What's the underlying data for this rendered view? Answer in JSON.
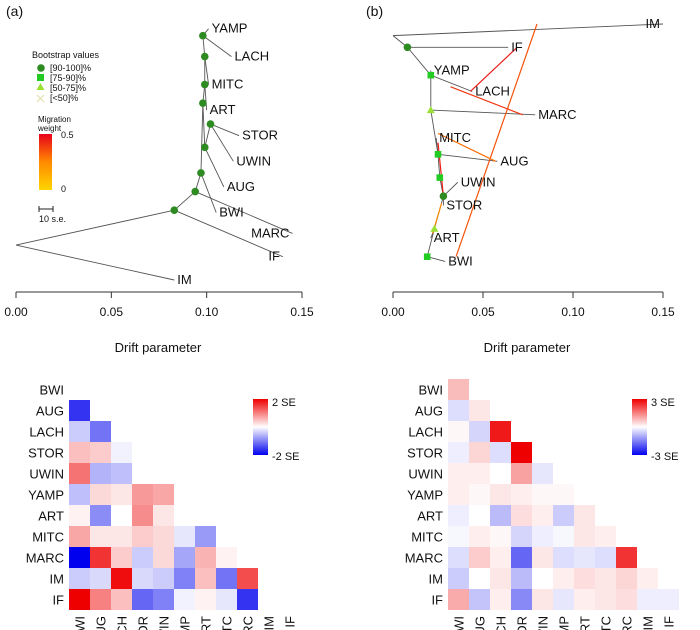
{
  "chart_data": [
    {
      "type": "tree",
      "panel_label": "(a)",
      "xlabel": "Drift parameter",
      "xlim": [
        0,
        0.15
      ],
      "xticks": [
        "0.00",
        "0.05",
        "0.10",
        "0.15"
      ],
      "tips": [
        {
          "name": "YAMP",
          "drift": 0.101,
          "rank": 10.8
        },
        {
          "name": "LACH",
          "drift": 0.113,
          "rank": 9.6
        },
        {
          "name": "MITC",
          "drift": 0.101,
          "rank": 8.4
        },
        {
          "name": "ART",
          "drift": 0.1,
          "rank": 7.3
        },
        {
          "name": "STOR",
          "drift": 0.117,
          "rank": 6.2
        },
        {
          "name": "UWIN",
          "drift": 0.114,
          "rank": 5.1
        },
        {
          "name": "AUG",
          "drift": 0.109,
          "rank": 4.0
        },
        {
          "name": "BWI",
          "drift": 0.105,
          "rank": 2.9
        },
        {
          "name": "MARC",
          "drift": 0.145,
          "rank": 2.0
        },
        {
          "name": "IF",
          "drift": 0.14,
          "rank": 1.0
        },
        {
          "name": "IM",
          "drift": 0.083,
          "rank": 0.0
        }
      ],
      "nodes": [
        {
          "id": "n1",
          "drift": 0.083,
          "rank": 3.0,
          "support": "[90-100]%"
        },
        {
          "id": "n2",
          "drift": 0.094,
          "rank": 3.8,
          "support": "[90-100]%"
        },
        {
          "id": "n3",
          "drift": 0.097,
          "rank": 4.6,
          "support": "[90-100]%"
        },
        {
          "id": "n4",
          "drift": 0.098,
          "rank": 7.6,
          "support": "[90-100]%"
        },
        {
          "id": "n5",
          "drift": 0.099,
          "rank": 8.4,
          "support": "[90-100]%"
        },
        {
          "id": "n6",
          "drift": 0.098,
          "rank": 10.5,
          "support": "[90-100]%"
        },
        {
          "id": "n7",
          "drift": 0.099,
          "rank": 9.6,
          "support": "[90-100]%"
        },
        {
          "id": "n8",
          "drift": 0.099,
          "rank": 5.7,
          "support": "[90-100]%"
        },
        {
          "id": "n9",
          "drift": 0.102,
          "rank": 6.7,
          "support": "[90-100]%"
        }
      ],
      "edges": [
        [
          "root",
          "IM"
        ],
        [
          "root",
          "n1"
        ],
        [
          "n1",
          "IF"
        ],
        [
          "n1",
          "n2"
        ],
        [
          "n2",
          "MARC"
        ],
        [
          "n2",
          "n3"
        ],
        [
          "n3",
          "BWI"
        ],
        [
          "n3",
          "n4"
        ],
        [
          "n4",
          "n8"
        ],
        [
          "n8",
          "AUG"
        ],
        [
          "n8",
          "n9"
        ],
        [
          "n9",
          "STOR"
        ],
        [
          "n9",
          "UWIN"
        ],
        [
          "n4",
          "n5"
        ],
        [
          "n5",
          "ART"
        ],
        [
          "n5",
          "n7"
        ],
        [
          "n7",
          "MITC"
        ],
        [
          "n7",
          "n6"
        ],
        [
          "n6",
          "YAMP"
        ],
        [
          "n6",
          "LACH"
        ]
      ],
      "root_drift": 0.0,
      "legend": {
        "bootstrap_title": "Bootstrap values",
        "bootstrap_entries": [
          {
            "label": "[90-100]%",
            "shape": "circle",
            "color": "#2e8b22"
          },
          {
            "label": "[75-90]%",
            "shape": "square",
            "color": "#22cc22"
          },
          {
            "label": "[50-75]%",
            "shape": "triangle",
            "color": "#99e033"
          },
          {
            "label": "[<50]%",
            "shape": "cross",
            "color": "#e6e6b3"
          }
        ],
        "migration_title_line1": "Migration",
        "migration_title_line2": "weight",
        "migration_max": "0.5",
        "migration_min": "0",
        "scale_label": "10 s.e."
      }
    },
    {
      "type": "tree",
      "panel_label": "(b)",
      "xlabel": "Drift parameter",
      "xlim": [
        0,
        0.15
      ],
      "xticks": [
        "0.00",
        "0.05",
        "0.10",
        "0.15"
      ],
      "tips": [
        {
          "name": "IM",
          "drift": 0.15,
          "rank": 11.0
        },
        {
          "name": "IF",
          "drift": 0.064,
          "rank": 10.0
        },
        {
          "name": "YAMP",
          "drift": 0.021,
          "rank": 9.0
        },
        {
          "name": "LACH",
          "drift": 0.044,
          "rank": 8.1
        },
        {
          "name": "MARC",
          "drift": 0.079,
          "rank": 7.1
        },
        {
          "name": "MITC",
          "drift": 0.024,
          "rank": 6.1
        },
        {
          "name": "AUG",
          "drift": 0.058,
          "rank": 5.1
        },
        {
          "name": "UWIN",
          "drift": 0.036,
          "rank": 4.2
        },
        {
          "name": "STOR",
          "drift": 0.028,
          "rank": 3.2
        },
        {
          "name": "ART",
          "drift": 0.021,
          "rank": 1.8
        },
        {
          "name": "BWI",
          "drift": 0.029,
          "rank": 0.8
        }
      ],
      "nodes": [
        {
          "id": "m1",
          "drift": 0.008,
          "rank": 10.0,
          "support": "[90-100]%"
        },
        {
          "id": "m2",
          "drift": 0.021,
          "rank": 8.8,
          "support": "[75-90]%"
        },
        {
          "id": "m3",
          "drift": 0.021,
          "rank": 7.3,
          "support": "[50-75]%"
        },
        {
          "id": "m4",
          "drift": 0.025,
          "rank": 5.4,
          "support": "[75-90]%"
        },
        {
          "id": "m5",
          "drift": 0.026,
          "rank": 4.4,
          "support": "[75-90]%"
        },
        {
          "id": "m6",
          "drift": 0.028,
          "rank": 3.6,
          "support": "[90-100]%"
        },
        {
          "id": "m7",
          "drift": 0.023,
          "rank": 2.2,
          "support": "[50-75]%"
        },
        {
          "id": "m8",
          "drift": 0.019,
          "rank": 1.0,
          "support": "[75-90]%"
        }
      ],
      "edges": [
        [
          "root",
          "IM"
        ],
        [
          "root",
          "m1"
        ],
        [
          "m1",
          "IF"
        ],
        [
          "m1",
          "m2"
        ],
        [
          "m2",
          "YAMP"
        ],
        [
          "m2",
          "LACH"
        ],
        [
          "m2",
          "m3"
        ],
        [
          "m3",
          "MARC"
        ],
        [
          "m3",
          "m4"
        ],
        [
          "m4",
          "MITC"
        ],
        [
          "m4",
          "AUG"
        ],
        [
          "m4",
          "m5"
        ],
        [
          "m5",
          "m6"
        ],
        [
          "m6",
          "UWIN"
        ],
        [
          "m6",
          "STOR"
        ],
        [
          "m6",
          "m7"
        ],
        [
          "m7",
          "ART"
        ],
        [
          "m7",
          "m8"
        ],
        [
          "m8",
          "BWI"
        ]
      ],
      "root_drift": 0.0,
      "migration_edges": [
        {
          "from_drift": 0.069,
          "from_rank": 10.0,
          "to_drift": 0.043,
          "to_rank": 8.1,
          "weight": 0.45
        },
        {
          "from_drift": 0.08,
          "from_rank": 11.0,
          "to_drift": 0.035,
          "to_rank": 1.0,
          "weight": 0.35
        },
        {
          "from_drift": 0.072,
          "from_rank": 7.1,
          "to_drift": 0.032,
          "to_rank": 8.3,
          "weight": 0.4
        },
        {
          "from_drift": 0.057,
          "from_rank": 5.1,
          "to_drift": 0.025,
          "to_rank": 6.3,
          "weight": 0.3
        },
        {
          "from_drift": 0.025,
          "from_rank": 5.9,
          "to_drift": 0.028,
          "to_rank": 3.6,
          "weight": 0.45
        },
        {
          "from_drift": 0.027,
          "from_rank": 3.3,
          "to_drift": 0.022,
          "to_rank": 2.0,
          "weight": 0.25
        }
      ]
    },
    {
      "type": "heatmap",
      "scale_max_label": "2 SE",
      "scale_min_label": "-2 SE",
      "vmax": 2,
      "row_labels": [
        "BWI",
        "AUG",
        "LACH",
        "STOR",
        "UWIN",
        "YAMP",
        "ART",
        "MITC",
        "MARC",
        "IM",
        "IF"
      ],
      "col_labels": [
        "BWI",
        "AUG",
        "LACH",
        "STOR",
        "UWIN",
        "YAMP",
        "ART",
        "MITC",
        "MARC",
        "IM",
        "IF"
      ],
      "values": [
        [
          null,
          null,
          null,
          null,
          null,
          null,
          null,
          null,
          null,
          null,
          null
        ],
        [
          -1.6,
          null,
          null,
          null,
          null,
          null,
          null,
          null,
          null,
          null,
          null
        ],
        [
          -0.4,
          -1.1,
          null,
          null,
          null,
          null,
          null,
          null,
          null,
          null,
          null
        ],
        [
          0.5,
          0.4,
          -0.1,
          null,
          null,
          null,
          null,
          null,
          null,
          null,
          null
        ],
        [
          1.1,
          -0.6,
          -0.5,
          null,
          null,
          null,
          null,
          null,
          null,
          null,
          null
        ],
        [
          -0.5,
          0.3,
          0.2,
          0.8,
          0.7,
          null,
          null,
          null,
          null,
          null,
          null
        ],
        [
          0.1,
          -0.9,
          0.0,
          0.9,
          0.2,
          0.0,
          null,
          null,
          null,
          null,
          null
        ],
        [
          0.7,
          0.2,
          0.2,
          0.4,
          0.3,
          -0.2,
          -0.8,
          null,
          null,
          null,
          null
        ],
        [
          -2.0,
          1.6,
          0.4,
          -0.4,
          0.3,
          -0.7,
          0.6,
          0.1,
          null,
          null,
          null
        ],
        [
          -0.4,
          -0.3,
          1.9,
          -0.3,
          -0.4,
          -1.0,
          0.5,
          -1.1,
          1.4,
          null,
          null
        ],
        [
          2.2,
          1.0,
          0.5,
          -1.2,
          -1.0,
          -0.1,
          0.1,
          -0.2,
          -1.6,
          null,
          null
        ]
      ]
    },
    {
      "type": "heatmap",
      "scale_max_label": "3 SE",
      "scale_min_label": "-3 SE",
      "vmax": 3,
      "row_labels": [
        "BWI",
        "AUG",
        "LACH",
        "STOR",
        "UWIN",
        "YAMP",
        "ART",
        "MITC",
        "MARC",
        "IM",
        "IF"
      ],
      "col_labels": [
        "BWI",
        "AUG",
        "LACH",
        "STOR",
        "UWIN",
        "YAMP",
        "ART",
        "MITC",
        "MARC",
        "IM",
        "IF"
      ],
      "values": [
        [
          0.8,
          null,
          null,
          null,
          null,
          null,
          null,
          null,
          null,
          null,
          null
        ],
        [
          -0.4,
          0.3,
          null,
          null,
          null,
          null,
          null,
          null,
          null,
          null,
          null
        ],
        [
          0.1,
          -0.5,
          2.7,
          null,
          null,
          null,
          null,
          null,
          null,
          null,
          null
        ],
        [
          -0.2,
          0.5,
          -0.4,
          3.0,
          null,
          null,
          null,
          null,
          null,
          null,
          null
        ],
        [
          0.2,
          0.2,
          0.0,
          1.1,
          -0.3,
          null,
          null,
          null,
          null,
          null,
          null
        ],
        [
          0.2,
          0.1,
          0.3,
          0.2,
          0.1,
          0.1,
          null,
          null,
          null,
          null,
          null
        ],
        [
          -0.2,
          0.0,
          -0.8,
          0.4,
          0.2,
          -0.6,
          0.3,
          null,
          null,
          null,
          null
        ],
        [
          -0.1,
          0.2,
          0.1,
          -0.5,
          -0.2,
          -0.1,
          0.3,
          0.2,
          null,
          null,
          null
        ],
        [
          -0.4,
          0.6,
          0.2,
          -1.8,
          0.3,
          -0.4,
          -0.3,
          -0.4,
          2.4,
          null,
          null
        ],
        [
          -0.6,
          0.0,
          0.3,
          -0.8,
          0.0,
          0.2,
          0.4,
          0.3,
          0.5,
          0.2,
          null
        ],
        [
          1.0,
          -0.7,
          0.2,
          -1.4,
          0.3,
          -0.3,
          0.2,
          0.3,
          0.4,
          -0.2,
          -0.2
        ]
      ]
    }
  ]
}
